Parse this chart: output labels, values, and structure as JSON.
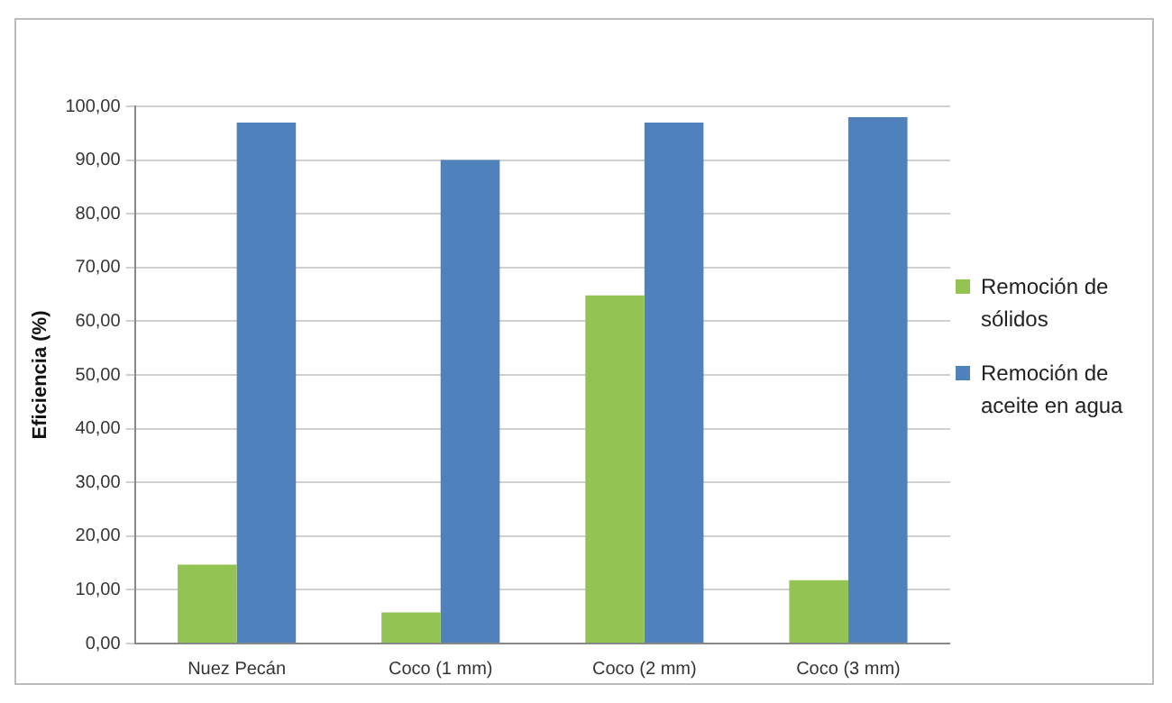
{
  "chart_data": {
    "type": "bar",
    "ylabel": "Eficiencia (%)",
    "categories": [
      "Nuez Pecán",
      "Coco (1 mm)",
      "Coco (2 mm)",
      "Coco (3 mm)"
    ],
    "series": [
      {
        "name": "Remoción de sólidos",
        "color": "#92c353",
        "values": [
          14.7,
          5.8,
          64.8,
          11.8
        ]
      },
      {
        "name": "Remoción de aceite en agua",
        "color": "#4f81bd",
        "values": [
          97,
          90,
          97,
          98
        ]
      }
    ],
    "ylim": [
      0,
      100
    ],
    "yticks": [
      {
        "value": 0,
        "label": "0,00"
      },
      {
        "value": 10,
        "label": "10,00"
      },
      {
        "value": 20,
        "label": "20,00"
      },
      {
        "value": 30,
        "label": "30,00"
      },
      {
        "value": 40,
        "label": "40,00"
      },
      {
        "value": 50,
        "label": "50,00"
      },
      {
        "value": 60,
        "label": "60,00"
      },
      {
        "value": 70,
        "label": "70,00"
      },
      {
        "value": 80,
        "label": "80,00"
      },
      {
        "value": 90,
        "label": "90,00"
      },
      {
        "value": 100,
        "label": "100,00"
      }
    ],
    "grid": "y",
    "legend": "right"
  }
}
